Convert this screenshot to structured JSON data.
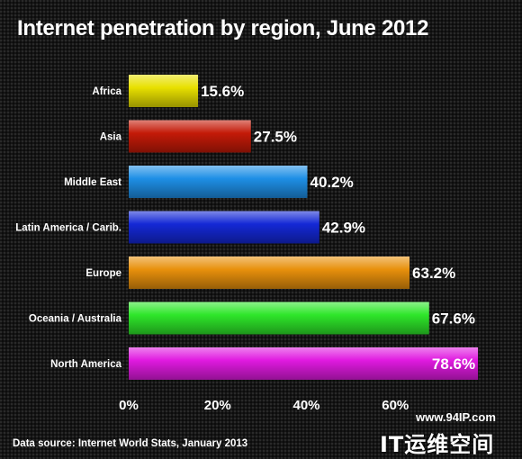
{
  "title": "Internet penetration by region, June 2012",
  "source": "Data source: Internet World Stats, January 2013",
  "watermark": {
    "url": "www.94IP.com",
    "logo": "IT运维空间"
  },
  "chart_data": {
    "type": "bar",
    "orientation": "horizontal",
    "title": "Internet penetration by region, June 2012",
    "categories": [
      "Africa",
      "Asia",
      "Middle East",
      "Latin America / Carib.",
      "Europe",
      "Oceania / Australia",
      "North America"
    ],
    "values": [
      15.6,
      27.5,
      40.2,
      42.9,
      63.2,
      67.6,
      78.6
    ],
    "value_labels": [
      "15.6%",
      "27.5%",
      "40.2%",
      "42.9%",
      "63.2%",
      "67.6%",
      "78.6%"
    ],
    "colors": [
      "#e8e000",
      "#c41a08",
      "#1e8fe6",
      "#1428d6",
      "#e8900c",
      "#2ee62a",
      "#e01ae0"
    ],
    "xlim": [
      0,
      80
    ],
    "xticks": [
      0,
      20,
      40,
      60
    ],
    "xtick_labels": [
      "0%",
      "20%",
      "40%",
      "60%"
    ],
    "grid": false
  }
}
